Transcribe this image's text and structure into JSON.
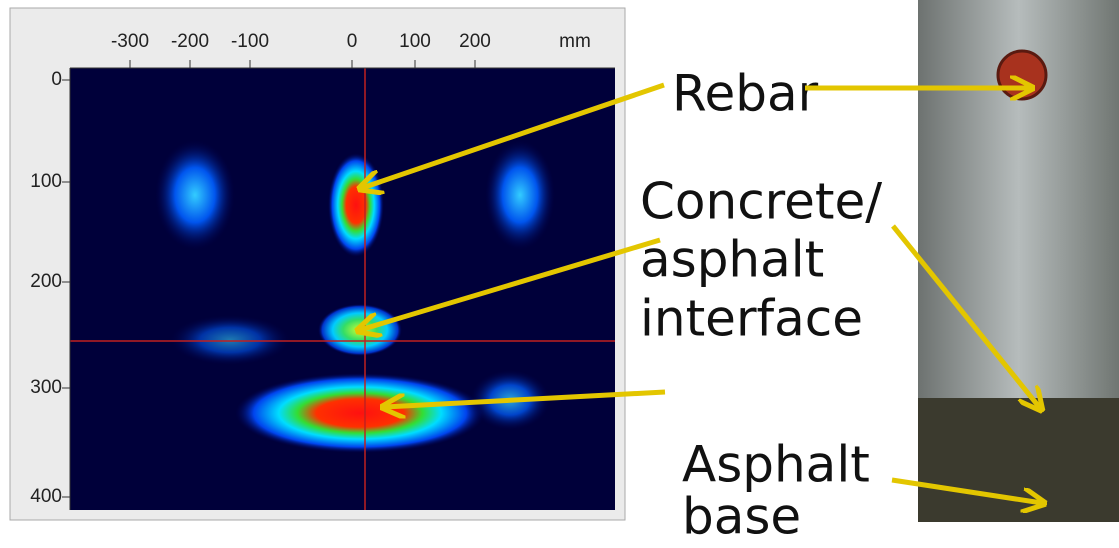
{
  "scan": {
    "x_ticks": [
      "-300",
      "-200",
      "-100",
      "0",
      "100",
      "200"
    ],
    "x_unit": "mm",
    "y_ticks": [
      "0",
      "100",
      "200",
      "300",
      "400"
    ]
  },
  "labels": {
    "rebar": "Rebar",
    "interface": [
      "Concrete/",
      "asphalt",
      "interface"
    ],
    "base": [
      "Asphalt",
      "base"
    ]
  }
}
